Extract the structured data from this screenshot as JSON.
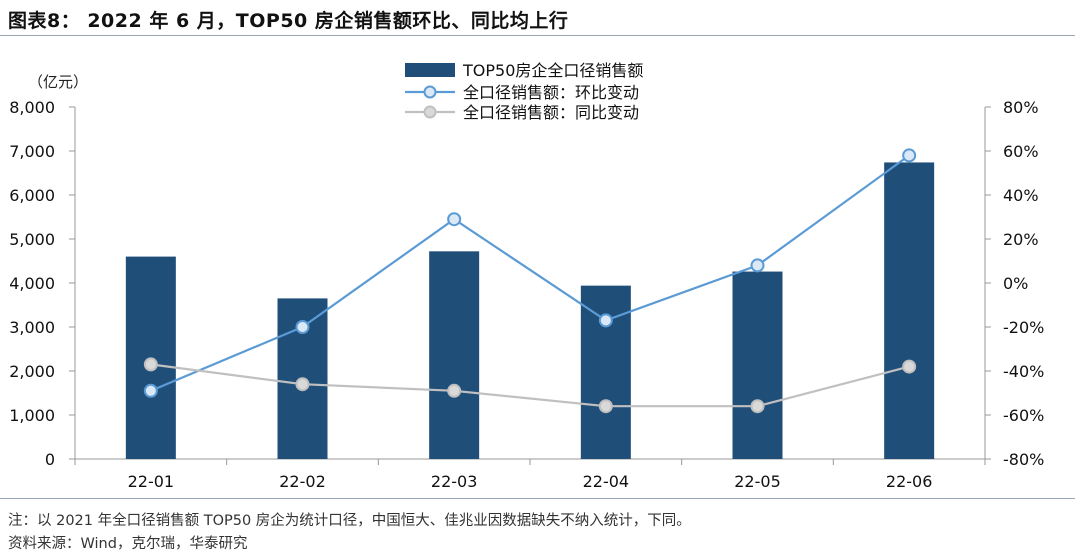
{
  "title": "图表8：  2022 年 6 月，TOP50 房企销售额环比、同比均上行",
  "chart_data": {
    "type": "bar+line",
    "categories": [
      "22-01",
      "22-02",
      "22-03",
      "22-04",
      "22-05",
      "22-06"
    ],
    "left_axis": {
      "unit_label": "（亿元）",
      "ylim": [
        0,
        8000
      ],
      "ticks": [
        "0",
        "1,000",
        "2,000",
        "3,000",
        "4,000",
        "5,000",
        "6,000",
        "7,000",
        "8,000"
      ]
    },
    "right_axis": {
      "ylim": [
        -80,
        80
      ],
      "ticks": [
        "-80%",
        "-60%",
        "-40%",
        "-20%",
        "0%",
        "20%",
        "40%",
        "60%",
        "80%"
      ]
    },
    "series": [
      {
        "name": "TOP50房企全口径销售额",
        "type": "bar",
        "axis": "left",
        "values": [
          4600,
          3650,
          4720,
          3940,
          4260,
          6740
        ],
        "color": "#1f4e79"
      },
      {
        "name": "全口径销售额：环比变动",
        "type": "line",
        "axis": "right",
        "values": [
          -49,
          -20,
          29,
          -17,
          8,
          58
        ],
        "color": "#5b9bd5"
      },
      {
        "name": "全口径销售额：同比变动",
        "type": "line",
        "axis": "right",
        "values": [
          -37,
          -46,
          -49,
          -56,
          -56,
          -38
        ],
        "color": "#c0c0c0"
      }
    ],
    "legend_position": "top-center",
    "grid": false
  },
  "notes": {
    "line1": "注：以 2021 年全口径销售额 TOP50 房企为统计口径，中国恒大、佳兆业因数据缺失不纳入统计，下同。",
    "line2": "资料来源：Wind，克尔瑞，华泰研究"
  }
}
